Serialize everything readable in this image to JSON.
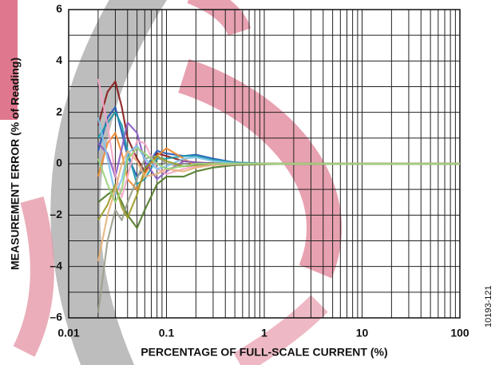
{
  "chart_data": {
    "type": "line",
    "x_label": "PERCENTAGE OF FULL-SCALE CURRENT (%)",
    "y_label": "MEASUREMENT ERROR (% of Reading)",
    "figure_id": "10193-121",
    "xscale": "log",
    "grid": true,
    "minor_grid": true,
    "xlim": [
      0.01,
      100
    ],
    "xticks": [
      0.01,
      0.1,
      1,
      10,
      100
    ],
    "ylim": [
      -6,
      6
    ],
    "yticks": [
      {
        "value": -6,
        "label": "–6"
      },
      {
        "value": -4,
        "label": "–4"
      },
      {
        "value": -2,
        "label": "–2"
      },
      0,
      2,
      4,
      6
    ],
    "x": [
      0.02,
      0.025,
      0.03,
      0.035,
      0.04,
      0.05,
      0.06,
      0.08,
      0.1,
      0.15,
      0.2,
      0.3,
      0.5,
      1,
      2,
      5,
      10,
      20,
      50,
      100
    ],
    "series": [
      {
        "color": "#8b1a1a",
        "values": [
          1.5,
          2.8,
          3.2,
          2.2,
          1.0,
          0.2,
          -0.3,
          0.4,
          0.3,
          0.1,
          0.05,
          0.02,
          0,
          0,
          0,
          0,
          0,
          0,
          0,
          0
        ]
      },
      {
        "color": "#2456b8",
        "values": [
          0.5,
          1.8,
          2.2,
          1.2,
          0.3,
          -0.5,
          -0.2,
          0.5,
          0.4,
          0.3,
          0.35,
          0.2,
          0.05,
          0,
          0,
          0,
          0,
          0,
          0,
          0
        ]
      },
      {
        "color": "#1b9aa8",
        "values": [
          1,
          1.6,
          2,
          1.5,
          0.5,
          -0.8,
          -0.6,
          0.2,
          0.2,
          0.3,
          0.3,
          0.15,
          0.05,
          0.01,
          0,
          0,
          0,
          0,
          0,
          0
        ]
      },
      {
        "color": "#4f7a28",
        "values": [
          -1.5,
          -1.2,
          -1,
          -1.5,
          -2,
          -2.5,
          -1.8,
          -0.8,
          -0.5,
          -0.5,
          -0.3,
          -0.15,
          -0.05,
          -0.02,
          0,
          0,
          0,
          0,
          0,
          0
        ]
      },
      {
        "color": "#f08a2c",
        "values": [
          -0.5,
          0.8,
          1.2,
          0.4,
          -0.6,
          -1,
          -0.4,
          0.3,
          0.6,
          0.2,
          -0.1,
          -0.05,
          0,
          0,
          0,
          0,
          0,
          0,
          0,
          0
        ]
      },
      {
        "color": "#8a5cc4",
        "values": [
          0.8,
          0.4,
          -0.5,
          0.6,
          1.6,
          1.2,
          0.1,
          -0.6,
          -0.3,
          0.1,
          0.05,
          0,
          0,
          0,
          0,
          0,
          0,
          0,
          0,
          0
        ]
      },
      {
        "color": "#f4a6c8",
        "values": [
          3.3,
          1.5,
          -0.4,
          -1.3,
          -0.5,
          0.9,
          0.8,
          -0.2,
          -0.4,
          -0.2,
          -0.1,
          -0.05,
          -0.02,
          0,
          0,
          0,
          0,
          0,
          0,
          0
        ]
      },
      {
        "color": "#9aa08c",
        "values": [
          -5.8,
          -3,
          -1.8,
          -2.2,
          -1.5,
          -0.6,
          0.2,
          0.3,
          0,
          -0.1,
          -0.05,
          0,
          0,
          0,
          0,
          0,
          0,
          0,
          0,
          0
        ]
      },
      {
        "color": "#7fc4ec",
        "values": [
          1.8,
          0.2,
          -1.2,
          -0.6,
          0.4,
          0.7,
          0.2,
          -0.2,
          -0.1,
          0.2,
          0.25,
          0.1,
          0.02,
          0,
          0,
          0,
          0,
          0,
          0,
          0
        ]
      },
      {
        "color": "#9b9b2a",
        "values": [
          -2.2,
          -1.6,
          -0.8,
          -1.7,
          -2.1,
          -1.2,
          -0.2,
          0.3,
          0.1,
          -0.1,
          -0.05,
          0,
          0,
          0,
          0,
          0,
          0,
          0,
          0,
          0
        ]
      },
      {
        "color": "#e8b27a",
        "values": [
          -3.8,
          -2,
          -1,
          0,
          0.5,
          0.1,
          -0.5,
          -0.4,
          -0.2,
          -0.3,
          -0.15,
          -0.05,
          0,
          0,
          0,
          0,
          0,
          0,
          0,
          0
        ]
      },
      {
        "color": "#9ad27c",
        "values": [
          0.2,
          -0.8,
          -1.5,
          -1,
          0.2,
          0.6,
          0.4,
          0,
          -0.2,
          -0.1,
          0,
          0,
          0,
          0,
          0,
          0,
          0,
          0,
          0,
          0
        ]
      }
    ]
  }
}
